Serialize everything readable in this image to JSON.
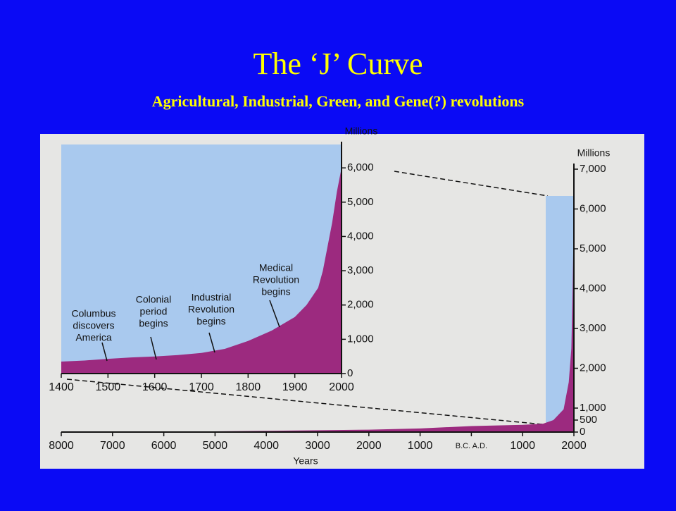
{
  "slide": {
    "title": "The ‘J’ Curve",
    "subtitle": "Agricultural, Industrial, Green, and Gene(?) revolutions"
  },
  "chart_data": [
    {
      "type": "area",
      "y_label": "Millions",
      "color": "#9c2a7f",
      "background_color": "#a9c9ee",
      "x": [
        1400,
        1450,
        1500,
        1550,
        1600,
        1650,
        1700,
        1750,
        1800,
        1850,
        1900,
        1925,
        1950,
        1960,
        1970,
        1980,
        1990,
        2000
      ],
      "values": [
        350,
        380,
        430,
        470,
        500,
        540,
        600,
        720,
        950,
        1250,
        1650,
        2000,
        2500,
        3000,
        3700,
        4400,
        5300,
        6000
      ],
      "xlim": [
        1400,
        2000
      ],
      "xticks": [
        1400,
        1500,
        1600,
        1700,
        1800,
        1900,
        2000
      ],
      "ylim": [
        0,
        6600
      ],
      "yticks": [
        0,
        {
          "value": 1000,
          "label": "1,000"
        },
        {
          "value": 2000,
          "label": "2,000"
        },
        {
          "value": 3000,
          "label": "3,000"
        },
        {
          "value": 4000,
          "label": "4,000"
        },
        {
          "value": 5000,
          "label": "5,000"
        },
        {
          "value": 6000,
          "label": "6,000"
        }
      ],
      "annotations": [
        [
          "Columbus",
          "discovers",
          "America"
        ],
        [
          "Colonial",
          "period",
          "begins"
        ],
        [
          "Industrial",
          "Revolution",
          "begins"
        ],
        [
          "Medical",
          "Revolution",
          "begins"
        ]
      ]
    },
    {
      "type": "area",
      "x_label": "Years",
      "y_label": "Millions",
      "color": "#9c2a7f",
      "background_color": "#a9c9ee",
      "x": [
        -8000,
        -6000,
        -4000,
        -2000,
        -1000,
        0,
        1000,
        1400,
        1600,
        1800,
        1900,
        1950,
        1975,
        2000
      ],
      "values": [
        5,
        10,
        50,
        100,
        150,
        250,
        300,
        350,
        500,
        950,
        1650,
        2500,
        4000,
        6000
      ],
      "xlim": [
        -8000,
        2000
      ],
      "xticks": [
        {
          "value": -8000,
          "label": "8000"
        },
        {
          "value": -7000,
          "label": "7000"
        },
        {
          "value": -6000,
          "label": "6000"
        },
        {
          "value": -5000,
          "label": "5000"
        },
        {
          "value": -4000,
          "label": "4000"
        },
        {
          "value": -3000,
          "label": "3000"
        },
        {
          "value": -2000,
          "label": "2000"
        },
        {
          "value": -1000,
          "label": "1000"
        },
        {
          "value": 0,
          "label": "B.C.   A.D."
        },
        1000,
        2000
      ],
      "ylim": [
        0,
        7000
      ],
      "yticks": [
        0,
        500,
        {
          "value": 1000,
          "label": "1,000"
        },
        {
          "value": 2000,
          "label": "2,000"
        },
        {
          "value": 3000,
          "label": "3,000"
        },
        {
          "value": 4000,
          "label": "4,000"
        },
        {
          "value": 5000,
          "label": "5,000"
        },
        {
          "value": 6000,
          "label": "6,000"
        },
        {
          "value": 7000,
          "label": "7,000"
        }
      ]
    }
  ]
}
